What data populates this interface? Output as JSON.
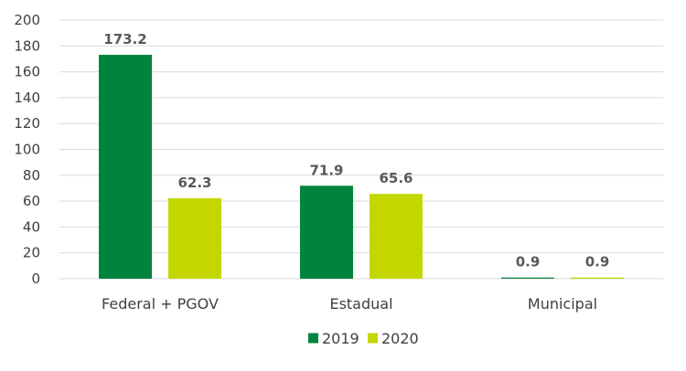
{
  "chart_data": {
    "type": "bar",
    "categories": [
      "Federal + PGOV",
      "Estadual",
      "Municipal"
    ],
    "series": [
      {
        "name": "2019",
        "values": [
          173.2,
          71.9,
          0.9
        ],
        "color": "#00843D"
      },
      {
        "name": "2020",
        "values": [
          62.3,
          65.6,
          0.9
        ],
        "color": "#C4D600"
      }
    ],
    "data_labels": [
      [
        "173.2",
        "71.9",
        "0.9"
      ],
      [
        "62.3",
        "65.6",
        "0.9"
      ]
    ],
    "ylim": [
      0,
      200
    ],
    "yticks": [
      0,
      20,
      40,
      60,
      80,
      100,
      120,
      140,
      160,
      180,
      200
    ],
    "grid": true,
    "gridline_color": "#d9d9d9",
    "legend_position": "bottom",
    "title": "",
    "xlabel": "",
    "ylabel": ""
  }
}
